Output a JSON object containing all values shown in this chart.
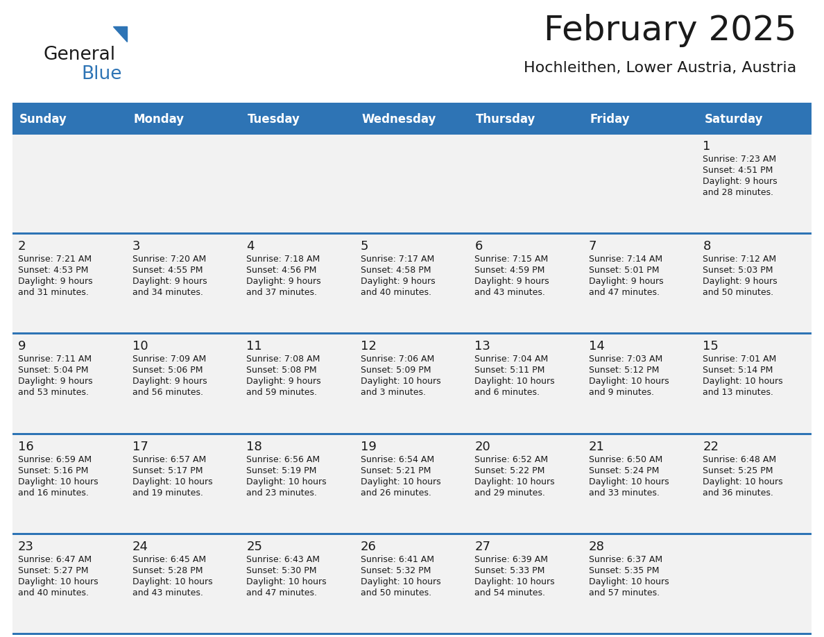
{
  "title": "February 2025",
  "subtitle": "Hochleithen, Lower Austria, Austria",
  "header_bg": "#2E74B5",
  "header_text_color": "#FFFFFF",
  "cell_bg": "#F2F2F2",
  "separator_color": "#2E74B5",
  "text_color": "#1a1a1a",
  "day_names": [
    "Sunday",
    "Monday",
    "Tuesday",
    "Wednesday",
    "Thursday",
    "Friday",
    "Saturday"
  ],
  "days_data": [
    {
      "day": 1,
      "col": 6,
      "row": 0,
      "sunrise": "7:23 AM",
      "sunset": "4:51 PM",
      "daylight_h": "9 hours",
      "daylight_m": "28 minutes"
    },
    {
      "day": 2,
      "col": 0,
      "row": 1,
      "sunrise": "7:21 AM",
      "sunset": "4:53 PM",
      "daylight_h": "9 hours",
      "daylight_m": "31 minutes"
    },
    {
      "day": 3,
      "col": 1,
      "row": 1,
      "sunrise": "7:20 AM",
      "sunset": "4:55 PM",
      "daylight_h": "9 hours",
      "daylight_m": "34 minutes"
    },
    {
      "day": 4,
      "col": 2,
      "row": 1,
      "sunrise": "7:18 AM",
      "sunset": "4:56 PM",
      "daylight_h": "9 hours",
      "daylight_m": "37 minutes"
    },
    {
      "day": 5,
      "col": 3,
      "row": 1,
      "sunrise": "7:17 AM",
      "sunset": "4:58 PM",
      "daylight_h": "9 hours",
      "daylight_m": "40 minutes"
    },
    {
      "day": 6,
      "col": 4,
      "row": 1,
      "sunrise": "7:15 AM",
      "sunset": "4:59 PM",
      "daylight_h": "9 hours",
      "daylight_m": "43 minutes"
    },
    {
      "day": 7,
      "col": 5,
      "row": 1,
      "sunrise": "7:14 AM",
      "sunset": "5:01 PM",
      "daylight_h": "9 hours",
      "daylight_m": "47 minutes"
    },
    {
      "day": 8,
      "col": 6,
      "row": 1,
      "sunrise": "7:12 AM",
      "sunset": "5:03 PM",
      "daylight_h": "9 hours",
      "daylight_m": "50 minutes"
    },
    {
      "day": 9,
      "col": 0,
      "row": 2,
      "sunrise": "7:11 AM",
      "sunset": "5:04 PM",
      "daylight_h": "9 hours",
      "daylight_m": "53 minutes"
    },
    {
      "day": 10,
      "col": 1,
      "row": 2,
      "sunrise": "7:09 AM",
      "sunset": "5:06 PM",
      "daylight_h": "9 hours",
      "daylight_m": "56 minutes"
    },
    {
      "day": 11,
      "col": 2,
      "row": 2,
      "sunrise": "7:08 AM",
      "sunset": "5:08 PM",
      "daylight_h": "9 hours",
      "daylight_m": "59 minutes"
    },
    {
      "day": 12,
      "col": 3,
      "row": 2,
      "sunrise": "7:06 AM",
      "sunset": "5:09 PM",
      "daylight_h": "10 hours",
      "daylight_m": "3 minutes"
    },
    {
      "day": 13,
      "col": 4,
      "row": 2,
      "sunrise": "7:04 AM",
      "sunset": "5:11 PM",
      "daylight_h": "10 hours",
      "daylight_m": "6 minutes"
    },
    {
      "day": 14,
      "col": 5,
      "row": 2,
      "sunrise": "7:03 AM",
      "sunset": "5:12 PM",
      "daylight_h": "10 hours",
      "daylight_m": "9 minutes"
    },
    {
      "day": 15,
      "col": 6,
      "row": 2,
      "sunrise": "7:01 AM",
      "sunset": "5:14 PM",
      "daylight_h": "10 hours",
      "daylight_m": "13 minutes"
    },
    {
      "day": 16,
      "col": 0,
      "row": 3,
      "sunrise": "6:59 AM",
      "sunset": "5:16 PM",
      "daylight_h": "10 hours",
      "daylight_m": "16 minutes"
    },
    {
      "day": 17,
      "col": 1,
      "row": 3,
      "sunrise": "6:57 AM",
      "sunset": "5:17 PM",
      "daylight_h": "10 hours",
      "daylight_m": "19 minutes"
    },
    {
      "day": 18,
      "col": 2,
      "row": 3,
      "sunrise": "6:56 AM",
      "sunset": "5:19 PM",
      "daylight_h": "10 hours",
      "daylight_m": "23 minutes"
    },
    {
      "day": 19,
      "col": 3,
      "row": 3,
      "sunrise": "6:54 AM",
      "sunset": "5:21 PM",
      "daylight_h": "10 hours",
      "daylight_m": "26 minutes"
    },
    {
      "day": 20,
      "col": 4,
      "row": 3,
      "sunrise": "6:52 AM",
      "sunset": "5:22 PM",
      "daylight_h": "10 hours",
      "daylight_m": "29 minutes"
    },
    {
      "day": 21,
      "col": 5,
      "row": 3,
      "sunrise": "6:50 AM",
      "sunset": "5:24 PM",
      "daylight_h": "10 hours",
      "daylight_m": "33 minutes"
    },
    {
      "day": 22,
      "col": 6,
      "row": 3,
      "sunrise": "6:48 AM",
      "sunset": "5:25 PM",
      "daylight_h": "10 hours",
      "daylight_m": "36 minutes"
    },
    {
      "day": 23,
      "col": 0,
      "row": 4,
      "sunrise": "6:47 AM",
      "sunset": "5:27 PM",
      "daylight_h": "10 hours",
      "daylight_m": "40 minutes"
    },
    {
      "day": 24,
      "col": 1,
      "row": 4,
      "sunrise": "6:45 AM",
      "sunset": "5:28 PM",
      "daylight_h": "10 hours",
      "daylight_m": "43 minutes"
    },
    {
      "day": 25,
      "col": 2,
      "row": 4,
      "sunrise": "6:43 AM",
      "sunset": "5:30 PM",
      "daylight_h": "10 hours",
      "daylight_m": "47 minutes"
    },
    {
      "day": 26,
      "col": 3,
      "row": 4,
      "sunrise": "6:41 AM",
      "sunset": "5:32 PM",
      "daylight_h": "10 hours",
      "daylight_m": "50 minutes"
    },
    {
      "day": 27,
      "col": 4,
      "row": 4,
      "sunrise": "6:39 AM",
      "sunset": "5:33 PM",
      "daylight_h": "10 hours",
      "daylight_m": "54 minutes"
    },
    {
      "day": 28,
      "col": 5,
      "row": 4,
      "sunrise": "6:37 AM",
      "sunset": "5:35 PM",
      "daylight_h": "10 hours",
      "daylight_m": "57 minutes"
    }
  ],
  "num_rows": 5,
  "num_cols": 7,
  "logo_text1": "General",
  "logo_text2": "Blue",
  "logo_triangle_color": "#2E74B5",
  "logo_text1_color": "#1a1a1a",
  "logo_text2_color": "#2E74B5",
  "title_fontsize": 36,
  "subtitle_fontsize": 16,
  "header_fontsize": 12,
  "day_num_fontsize": 13,
  "info_fontsize": 9
}
